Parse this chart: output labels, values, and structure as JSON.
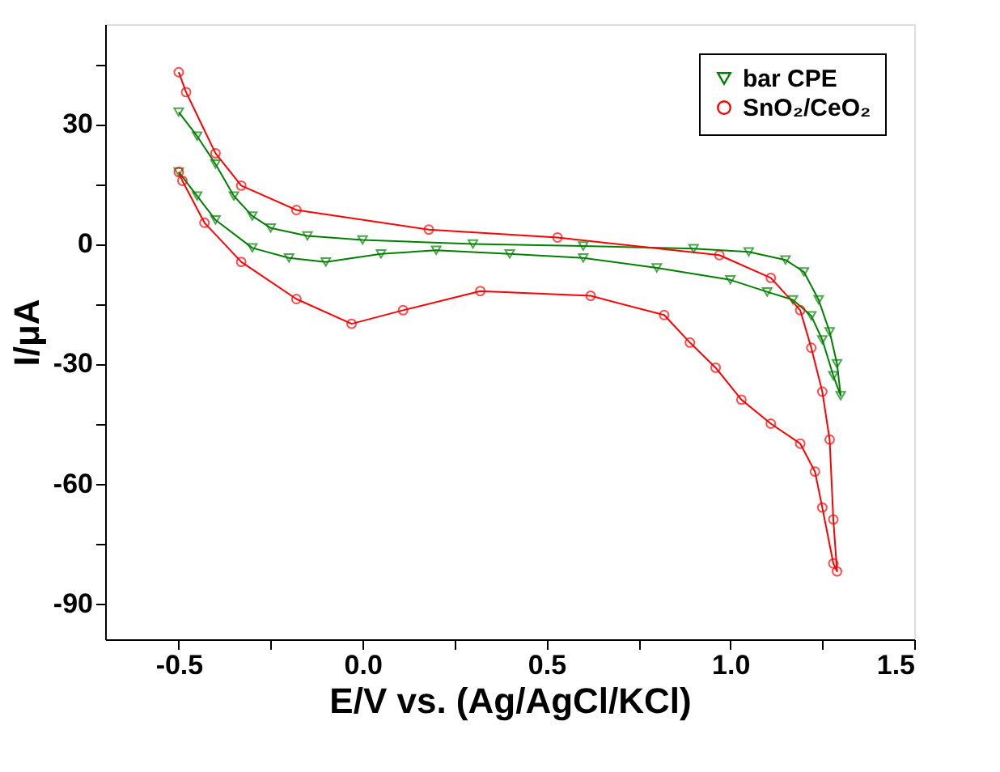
{
  "chart_data": {
    "type": "line",
    "xlabel": "E/V vs. (Ag/AgCl/KCl)",
    "ylabel": "I/μA",
    "xlim": [
      -0.7,
      1.5
    ],
    "ylim": [
      -99,
      55
    ],
    "xticks": [
      -0.5,
      {
        "value": -0.25,
        "label": null
      },
      {
        "value": 0,
        "label": "0.0"
      },
      {
        "value": 0.25,
        "label": null
      },
      0.5,
      {
        "value": 0.75,
        "label": null
      },
      {
        "value": 1,
        "label": "1.0"
      },
      {
        "value": 1.25,
        "label": null
      },
      1.5
    ],
    "yticks": [
      {
        "value": 45,
        "label": null
      },
      30,
      {
        "value": 15,
        "label": null
      },
      0,
      {
        "value": -15,
        "label": null
      },
      -30,
      {
        "value": -45,
        "label": null
      },
      -60,
      {
        "value": -75,
        "label": null
      },
      -90
    ],
    "grid": false,
    "legend": "top right",
    "line_style": "solid",
    "series": [
      {
        "name": "bar CPE",
        "color": "#008000",
        "marker": "triangle",
        "x": [
          -0.5,
          -0.45,
          -0.4,
          -0.35,
          -0.3,
          -0.25,
          -0.15,
          0,
          0.3,
          0.6,
          0.9,
          1.05,
          1.15,
          1.2,
          1.24,
          1.27,
          1.29,
          1.3,
          1.28,
          1.25,
          1.22,
          1.17,
          1.1,
          1.0,
          0.8,
          0.6,
          0.4,
          0.2,
          0.05,
          -0.1,
          -0.2,
          -0.3,
          -0.4,
          -0.45,
          -0.5
        ],
        "values": [
          33,
          27,
          20,
          12,
          7,
          4,
          2,
          1,
          0,
          -0.5,
          -1.2,
          -2,
          -4,
          -7,
          -14,
          -22,
          -30,
          -38,
          -33,
          -24,
          -18,
          -14,
          -12,
          -9,
          -6,
          -3.5,
          -2.5,
          -1.6,
          -2.5,
          -4.5,
          -3.5,
          -1,
          6,
          12,
          18
        ]
      },
      {
        "name": "SnO₂/CeO₂",
        "color": "#ff0000",
        "marker": "circle",
        "x": [
          -0.5,
          -0.48,
          -0.4,
          -0.33,
          -0.18,
          0.18,
          0.53,
          0.97,
          1.11,
          1.19,
          1.22,
          1.25,
          1.27,
          1.28,
          1.29,
          1.28,
          1.25,
          1.23,
          1.19,
          1.11,
          1.03,
          0.96,
          0.89,
          0.82,
          0.62,
          0.32,
          0.11,
          -0.03,
          -0.18,
          -0.33,
          -0.43,
          -0.49,
          -0.5
        ],
        "values": [
          43,
          38,
          22.7,
          14.6,
          8.5,
          3.6,
          1.6,
          -2.8,
          -8.5,
          -16.6,
          -26,
          -37,
          -49,
          -69,
          -82,
          -80,
          -66,
          -57,
          -50,
          -45,
          -39,
          -31,
          -24.7,
          -17.8,
          -13,
          -11.8,
          -16.6,
          -20,
          -13.8,
          -4.5,
          5.3,
          15.8,
          18
        ]
      }
    ]
  }
}
